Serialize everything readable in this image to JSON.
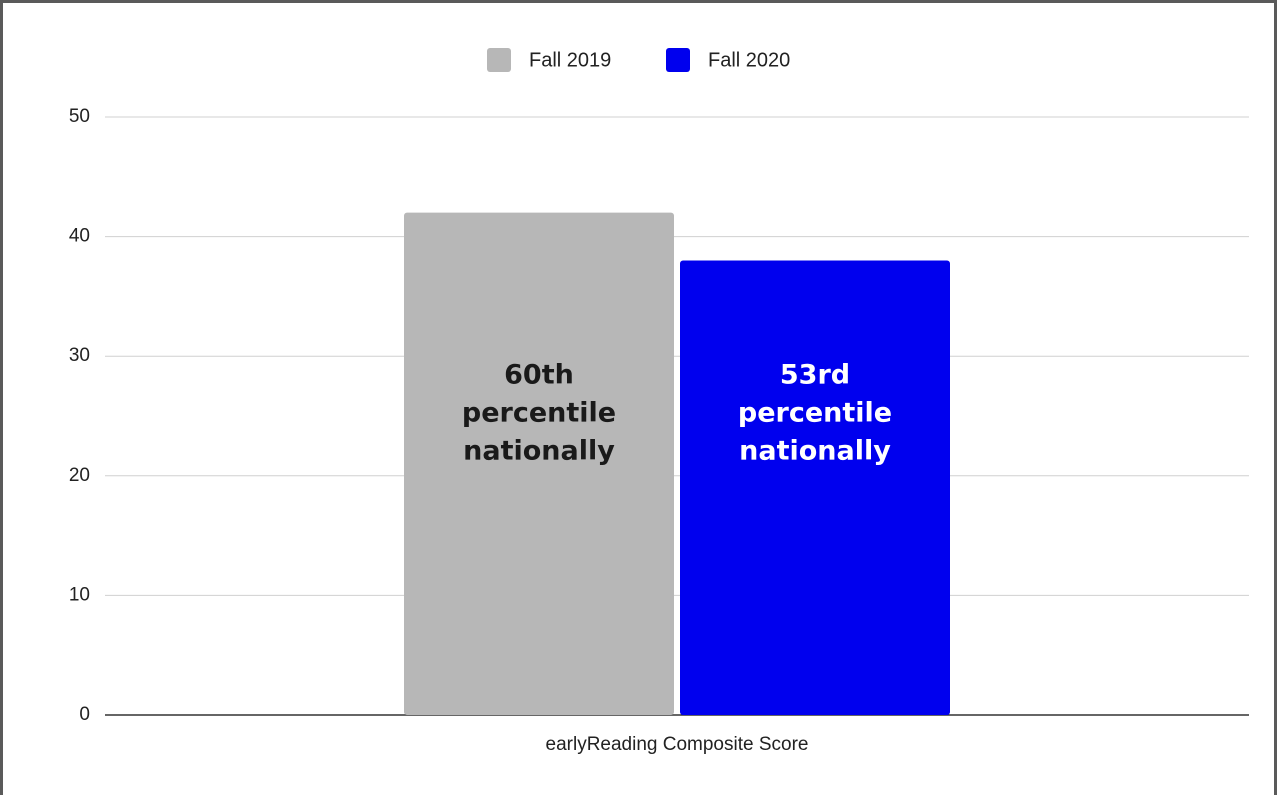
{
  "chart_data": {
    "type": "bar",
    "categories": [
      "earlyReading Composite Score"
    ],
    "series": [
      {
        "name": "Fall 2019",
        "color": "#b7b7b7",
        "label_color": "#1a1a1a",
        "values": [
          42
        ]
      },
      {
        "name": "Fall 2020",
        "color": "#0000ee",
        "label_color": "#ffffff",
        "values": [
          38
        ]
      }
    ],
    "annotations": [
      [
        "60th",
        "percentile",
        "nationally"
      ],
      [
        "53rd",
        "percentile",
        "nationally"
      ]
    ],
    "ylim": [
      0,
      50
    ],
    "yticks": [
      0,
      10,
      20,
      30,
      40,
      50
    ],
    "grid": true,
    "legend": "top"
  }
}
